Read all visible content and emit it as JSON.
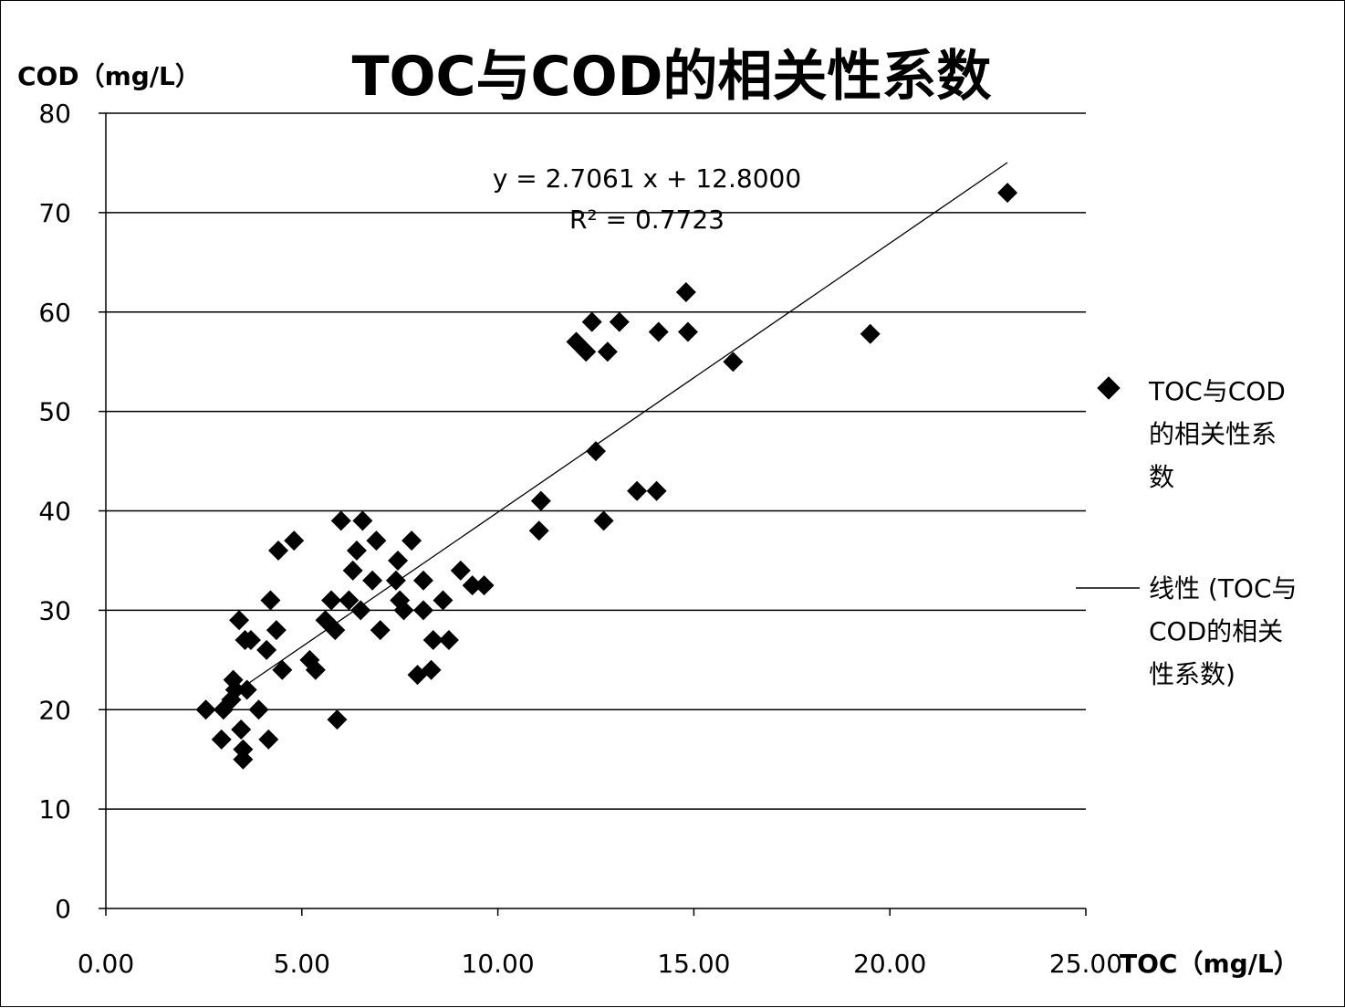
{
  "chart_data": {
    "type": "scatter",
    "title": "TOC与COD的相关性系数",
    "xlabel": "TOC（mg/L）",
    "ylabel": "COD（mg/L）",
    "xlim": [
      0,
      25
    ],
    "ylim": [
      0,
      80
    ],
    "x_ticks": [
      "0.00",
      "5.00",
      "10.00",
      "15.00",
      "20.00",
      "25.00"
    ],
    "y_ticks": [
      "0",
      "10",
      "20",
      "30",
      "40",
      "50",
      "60",
      "70",
      "80"
    ],
    "grid": "horizontal",
    "legend_placement": "right",
    "trendline": {
      "slope": 2.7061,
      "intercept": 12.8,
      "x_range": [
        3.5,
        23.0
      ],
      "equation": "y = 2.7061 x + 12.8000",
      "r2_label": "R² = 0.7723"
    },
    "series": [
      {
        "name": "TOC与COD的相关性系数",
        "marker": "diamond",
        "color": "#000000",
        "points": [
          [
            2.55,
            20
          ],
          [
            2.95,
            17
          ],
          [
            3.0,
            20
          ],
          [
            3.2,
            21
          ],
          [
            3.25,
            23
          ],
          [
            3.3,
            22
          ],
          [
            3.4,
            29
          ],
          [
            3.45,
            18
          ],
          [
            3.5,
            15
          ],
          [
            3.5,
            16
          ],
          [
            3.55,
            27
          ],
          [
            3.6,
            22
          ],
          [
            3.7,
            27
          ],
          [
            3.9,
            20
          ],
          [
            4.1,
            26
          ],
          [
            4.15,
            17
          ],
          [
            4.2,
            31
          ],
          [
            4.35,
            28
          ],
          [
            4.4,
            36
          ],
          [
            4.5,
            24
          ],
          [
            4.8,
            37
          ],
          [
            5.2,
            25
          ],
          [
            5.35,
            24
          ],
          [
            5.6,
            29
          ],
          [
            5.75,
            31
          ],
          [
            5.85,
            28
          ],
          [
            5.9,
            19
          ],
          [
            6.0,
            39
          ],
          [
            6.2,
            31
          ],
          [
            6.3,
            34
          ],
          [
            6.4,
            36
          ],
          [
            6.5,
            30
          ],
          [
            6.55,
            39
          ],
          [
            6.8,
            33
          ],
          [
            6.9,
            37
          ],
          [
            7.0,
            28
          ],
          [
            7.4,
            33
          ],
          [
            7.45,
            35
          ],
          [
            7.5,
            31
          ],
          [
            7.6,
            30
          ],
          [
            7.8,
            37
          ],
          [
            7.95,
            23.5
          ],
          [
            8.1,
            33
          ],
          [
            8.1,
            30
          ],
          [
            8.3,
            24
          ],
          [
            8.35,
            27
          ],
          [
            8.6,
            31
          ],
          [
            8.75,
            27
          ],
          [
            9.05,
            34
          ],
          [
            9.35,
            32.5
          ],
          [
            9.65,
            32.5
          ],
          [
            11.05,
            38
          ],
          [
            11.1,
            41
          ],
          [
            12.0,
            57
          ],
          [
            12.25,
            56
          ],
          [
            12.4,
            59
          ],
          [
            12.5,
            46
          ],
          [
            12.7,
            39
          ],
          [
            12.8,
            56
          ],
          [
            13.1,
            59
          ],
          [
            13.55,
            42
          ],
          [
            14.05,
            42
          ],
          [
            14.1,
            58
          ],
          [
            14.8,
            62
          ],
          [
            14.85,
            58
          ],
          [
            16.0,
            55
          ],
          [
            19.5,
            57.8
          ],
          [
            23.0,
            72
          ]
        ]
      }
    ],
    "legend": {
      "marker_label_lines": [
        "TOC与COD",
        "的相关性系",
        "数"
      ],
      "line_label_lines": [
        "线性 (TOC与",
        "COD的相关",
        "性系数)"
      ]
    }
  }
}
